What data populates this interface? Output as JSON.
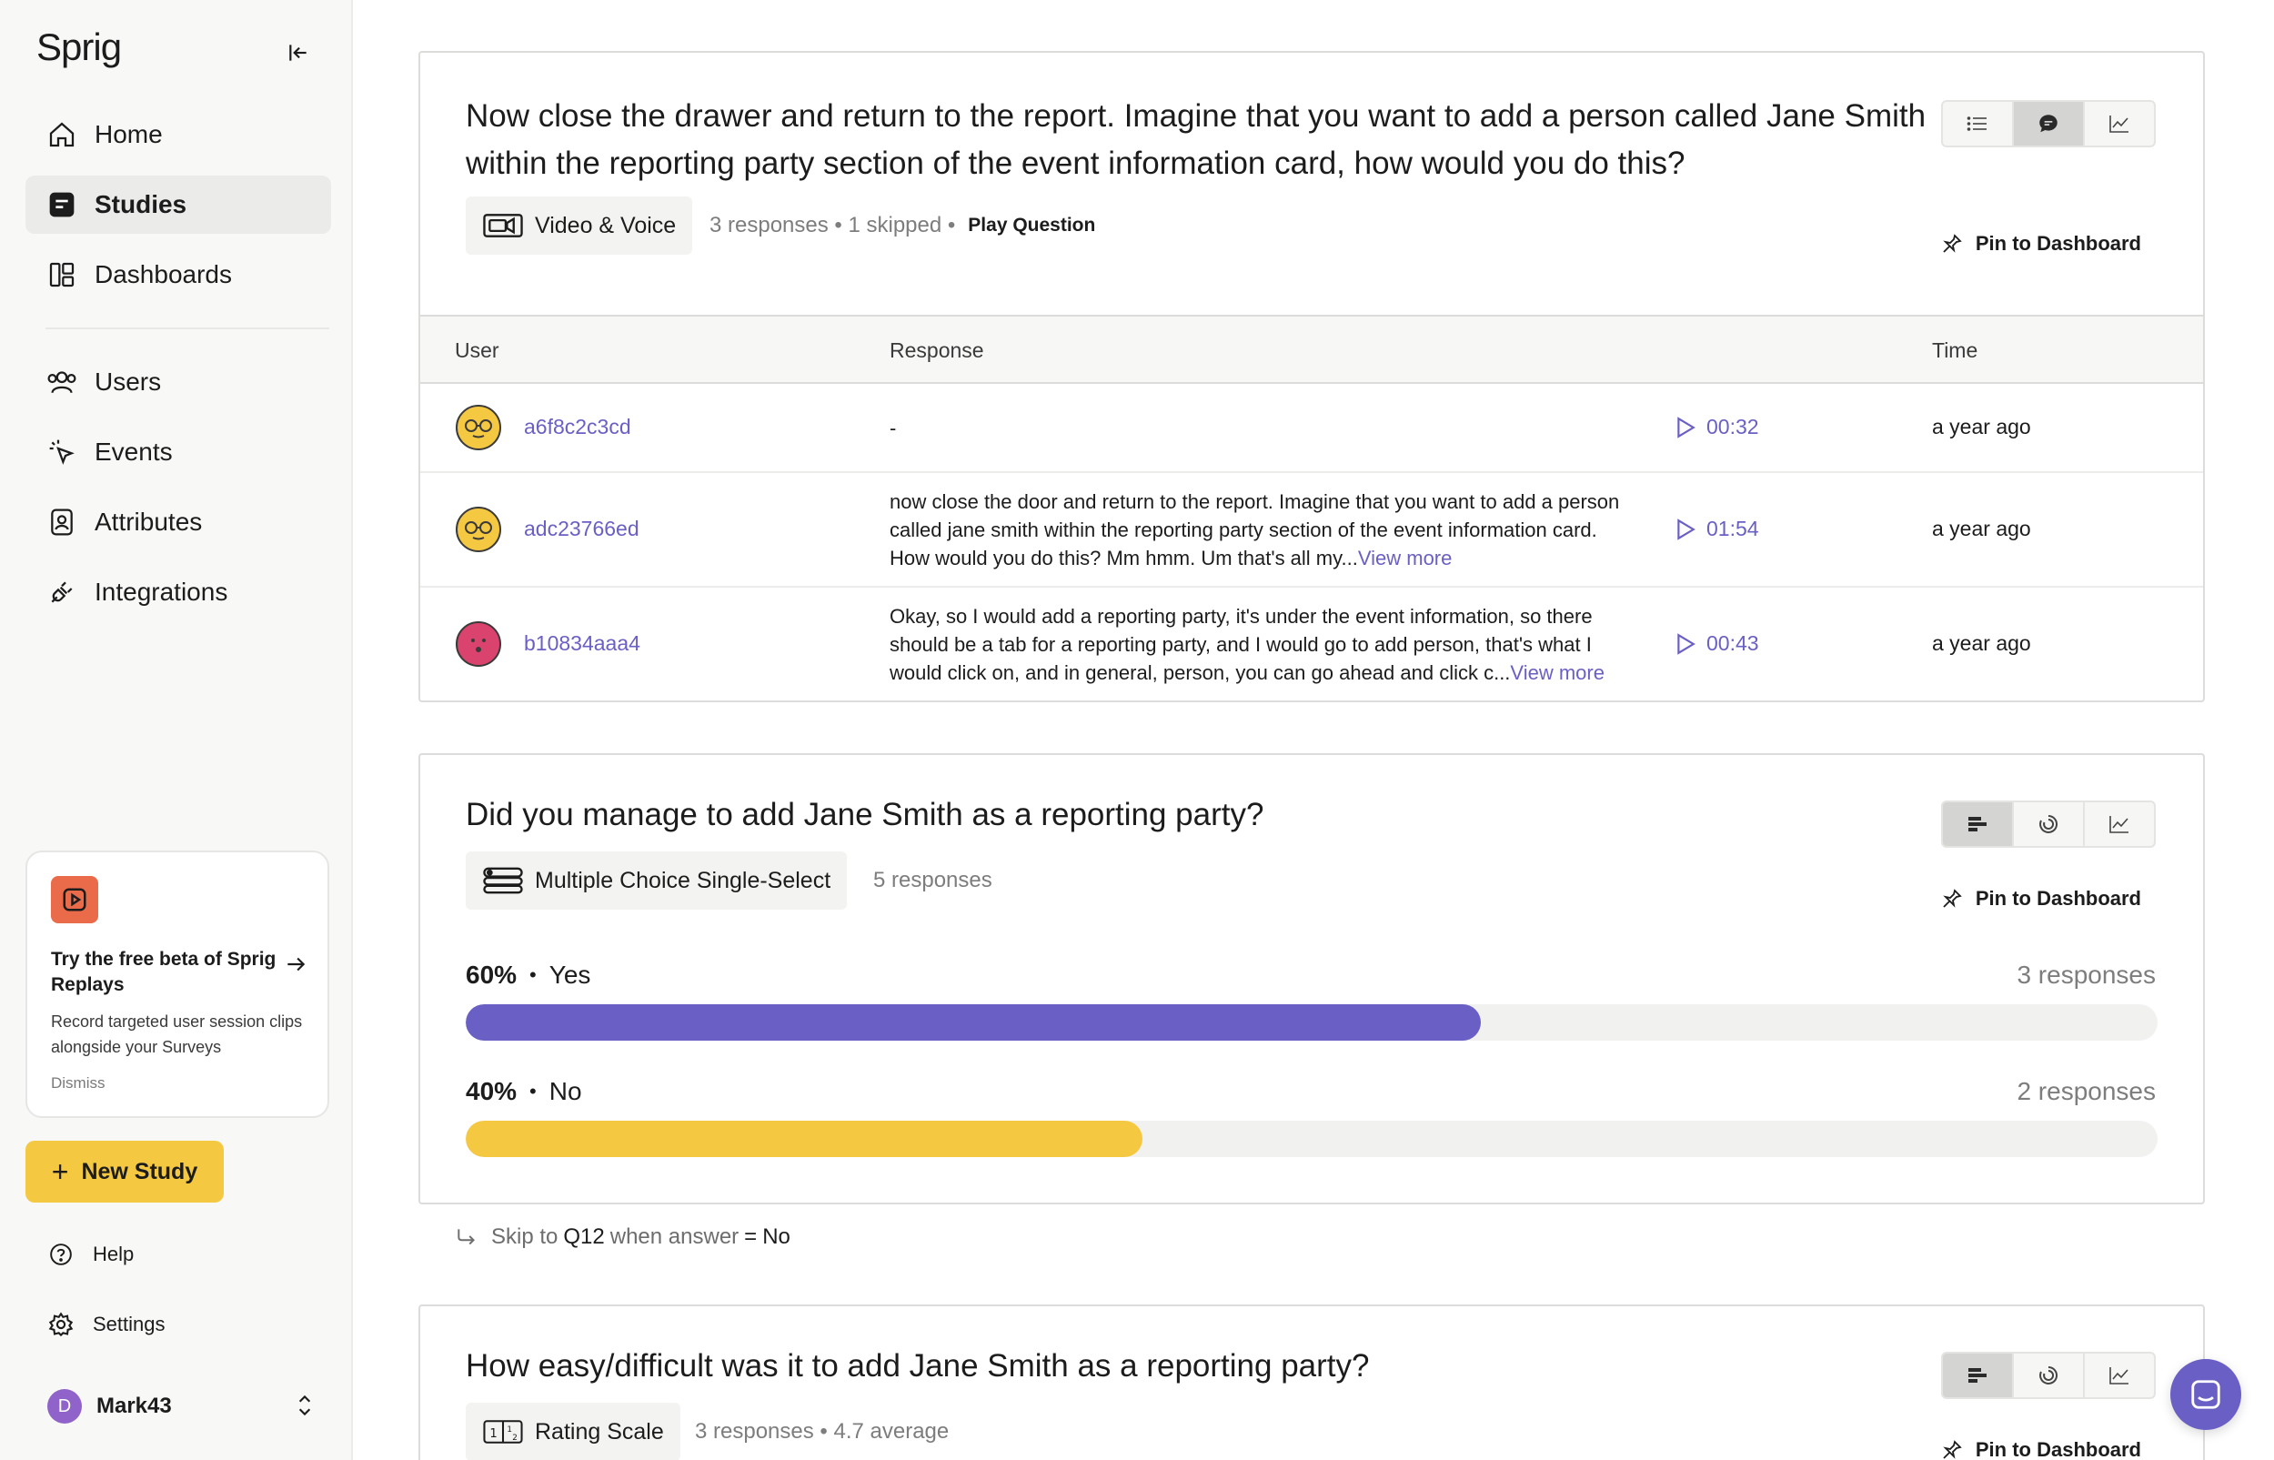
{
  "app": {
    "logo": "Sprig"
  },
  "sidebar": {
    "nav": [
      {
        "label": "Home",
        "icon": "home-icon"
      },
      {
        "label": "Studies",
        "icon": "studies-icon",
        "active": true
      },
      {
        "label": "Dashboards",
        "icon": "dashboards-icon"
      },
      {
        "label": "Users",
        "icon": "users-icon"
      },
      {
        "label": "Events",
        "icon": "events-icon"
      },
      {
        "label": "Attributes",
        "icon": "attributes-icon"
      },
      {
        "label": "Integrations",
        "icon": "integrations-icon"
      }
    ],
    "promo": {
      "title": "Try the free beta of Sprig Replays",
      "description": "Record targeted user session clips alongside your Surveys",
      "dismiss": "Dismiss"
    },
    "new_study": "New Study",
    "help": "Help",
    "settings": "Settings",
    "user": {
      "initial": "D",
      "name": "Mark43"
    }
  },
  "questions": [
    {
      "title": "Now close the drawer and return to the report. Imagine that you want to add a person called Jane Smith within the reporting party section of the event information card, how would you do this?",
      "type": "Video & Voice",
      "meta": "3 responses • 1 skipped •",
      "play": "Play Question",
      "pin": "Pin to Dashboard",
      "table": {
        "headers": {
          "user": "User",
          "response": "Response",
          "time": "Time"
        },
        "rows": [
          {
            "user": "a6f8c2c3cd",
            "response": "-",
            "more": "",
            "duration": "00:32",
            "time": "a year ago",
            "face_color": "#f5c842"
          },
          {
            "user": "adc23766ed",
            "response": "now close the door and return to the report. Imagine that you want to add a person called jane smith within the reporting party section of the event information card. How would you do this? Mm hmm. Um that's all my...",
            "more": "View more",
            "duration": "01:54",
            "time": "a year ago",
            "face_color": "#f5c842"
          },
          {
            "user": "b10834aaa4",
            "response": "Okay, so I would add a reporting party, it's under the event information, so there should be a tab for a reporting party, and I would go to add person, that's what I would click on, and in general, person, you can go ahead and click c...",
            "more": "View more",
            "duration": "00:43",
            "time": "a year ago",
            "face_color": "#d9436e"
          }
        ]
      }
    },
    {
      "title": "Did you manage to add Jane Smith as a reporting party?",
      "type": "Multiple Choice Single-Select",
      "meta": "5 responses",
      "pin": "Pin to Dashboard",
      "options": [
        {
          "pct": "60%",
          "label": "Yes",
          "count": "3 responses",
          "fraction": 0.6,
          "color": "#6a5fc4"
        },
        {
          "pct": "40%",
          "label": "No",
          "count": "2 responses",
          "fraction": 0.4,
          "color": "#f5c842"
        }
      ],
      "skip": {
        "prefix": "Skip to",
        "target": "Q12",
        "middle": "when answer",
        "op": "=",
        "value": "No"
      }
    },
    {
      "title": "How easy/difficult was it to add Jane Smith as a reporting party?",
      "type": "Rating Scale",
      "meta": "3 responses • 4.7 average",
      "pin": "Pin to Dashboard"
    }
  ]
}
